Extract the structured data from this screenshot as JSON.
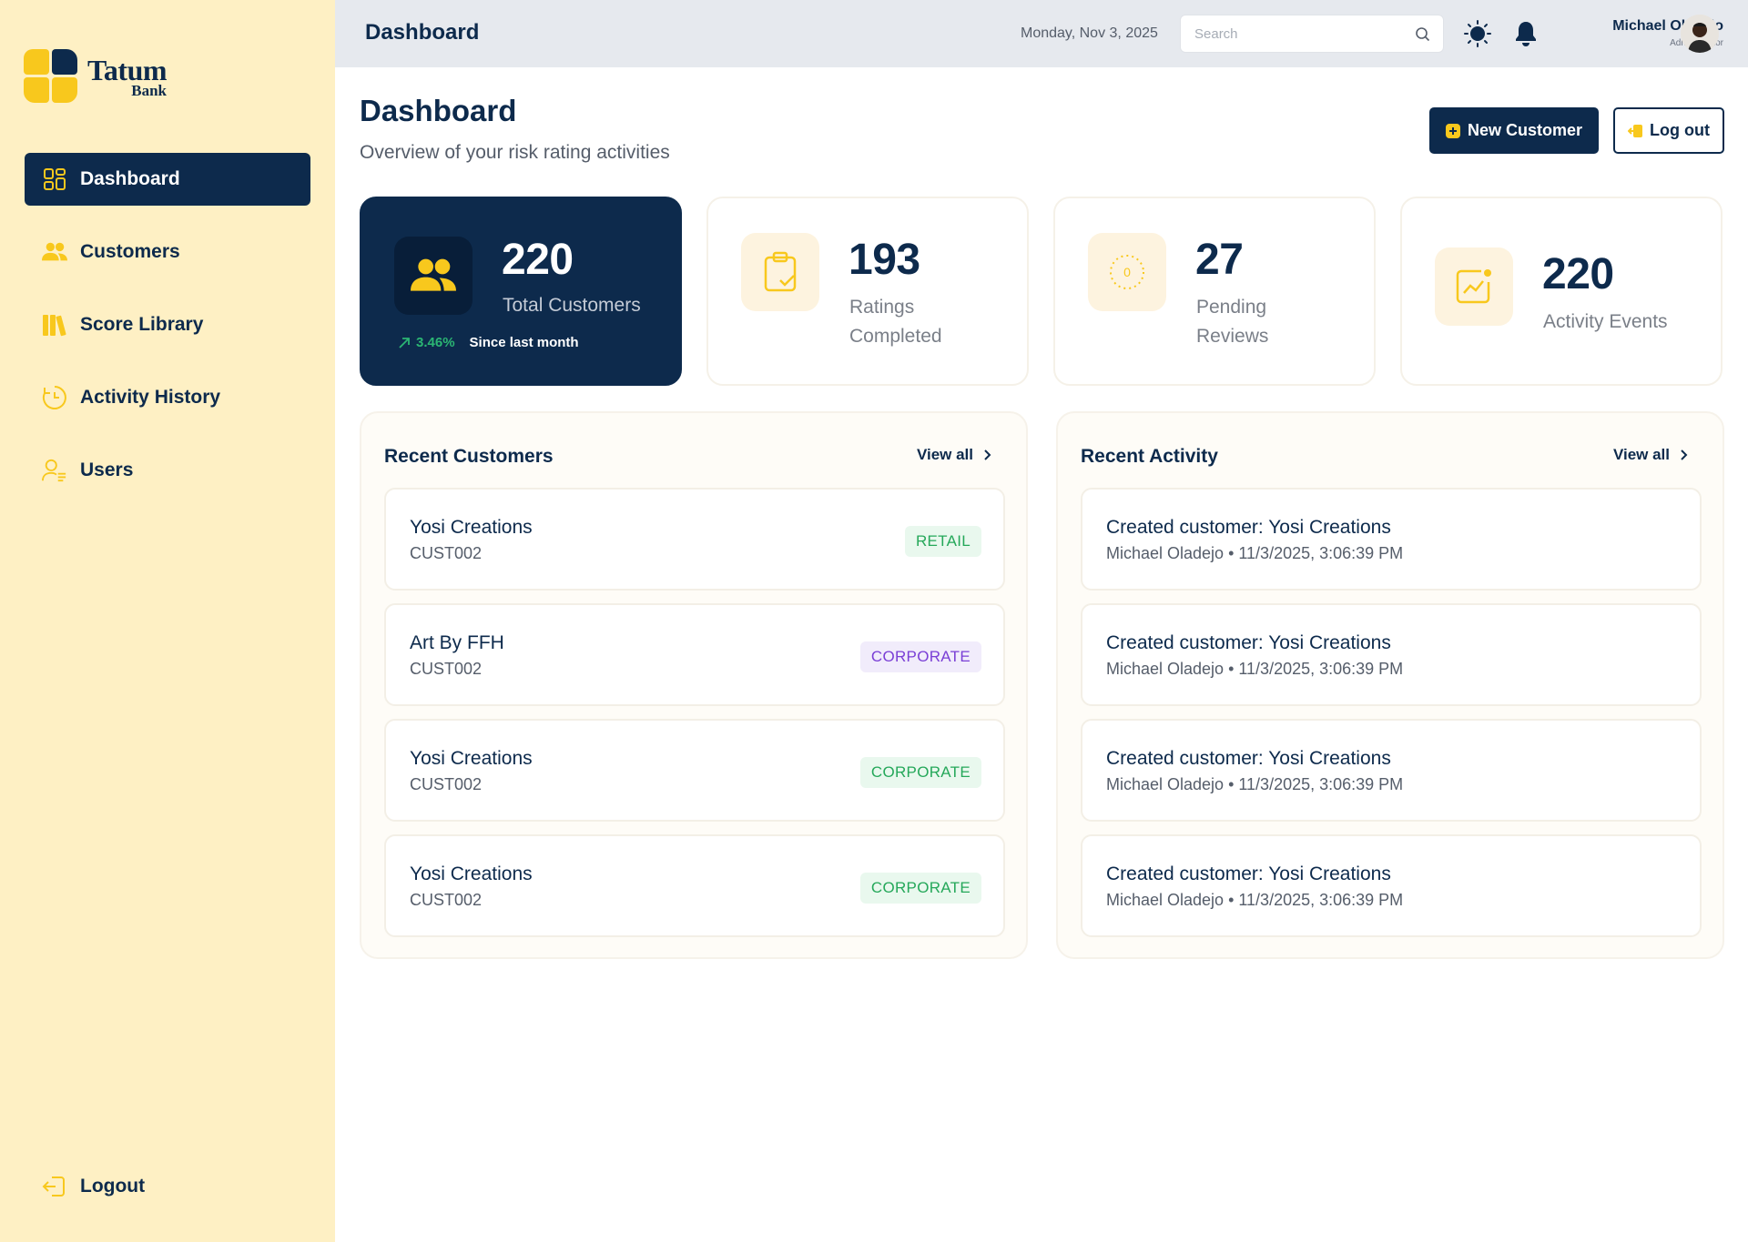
{
  "brand": {
    "name": "Tatum",
    "sub": "Bank"
  },
  "sidebar": {
    "items": [
      {
        "label": "Dashboard"
      },
      {
        "label": "Customers"
      },
      {
        "label": "Score Library"
      },
      {
        "label": "Activity History"
      },
      {
        "label": "Users"
      }
    ],
    "logout": "Logout"
  },
  "header": {
    "title": "Dashboard",
    "date": "Monday, Nov 3, 2025",
    "search_placeholder": "Search",
    "user_name": "Michael Oladejo",
    "user_role": "Administrator"
  },
  "page": {
    "title": "Dashboard",
    "subtitle": "Overview of your risk rating activities",
    "new_customer": "New Customer",
    "logout": "Log out"
  },
  "stats": [
    {
      "value": "220",
      "label": "Total Customers",
      "trend": "3.46%",
      "trend_text": "Since last month"
    },
    {
      "value": "193",
      "label_line1": "Ratings",
      "label_line2": "Completed"
    },
    {
      "value": "27",
      "label_line1": "Pending",
      "label_line2": "Reviews",
      "icon_text": "0"
    },
    {
      "value": "220",
      "label": "Activity Events"
    }
  ],
  "recent_customers": {
    "title": "Recent Customers",
    "view_all": "View all",
    "rows": [
      {
        "name": "Yosi Creations",
        "id": "CUST002",
        "type": "RETAIL",
        "badge_color": "green"
      },
      {
        "name": "Art By FFH",
        "id": "CUST002",
        "type": "CORPORATE",
        "badge_color": "purple"
      },
      {
        "name": "Yosi Creations",
        "id": "CUST002",
        "type": "CORPORATE",
        "badge_color": "green"
      },
      {
        "name": "Yosi Creations",
        "id": "CUST002",
        "type": "CORPORATE",
        "badge_color": "green"
      }
    ]
  },
  "recent_activity": {
    "title": "Recent Activity",
    "view_all": "View all",
    "rows": [
      {
        "title": "Created customer: Yosi Creations",
        "meta": "Michael Oladejo • 11/3/2025, 3:06:39 PM"
      },
      {
        "title": "Created customer: Yosi Creations",
        "meta": "Michael Oladejo • 11/3/2025, 3:06:39 PM"
      },
      {
        "title": "Created customer: Yosi Creations",
        "meta": "Michael Oladejo • 11/3/2025, 3:06:39 PM"
      },
      {
        "title": "Created customer: Yosi Creations",
        "meta": "Michael Oladejo • 11/3/2025, 3:06:39 PM"
      }
    ]
  },
  "colors": {
    "navy": "#0d2a4c",
    "accent": "#f8c81d",
    "sidebar_bg": "#fef0c4",
    "green": "#25a85a",
    "purple": "#7a3fd6"
  }
}
